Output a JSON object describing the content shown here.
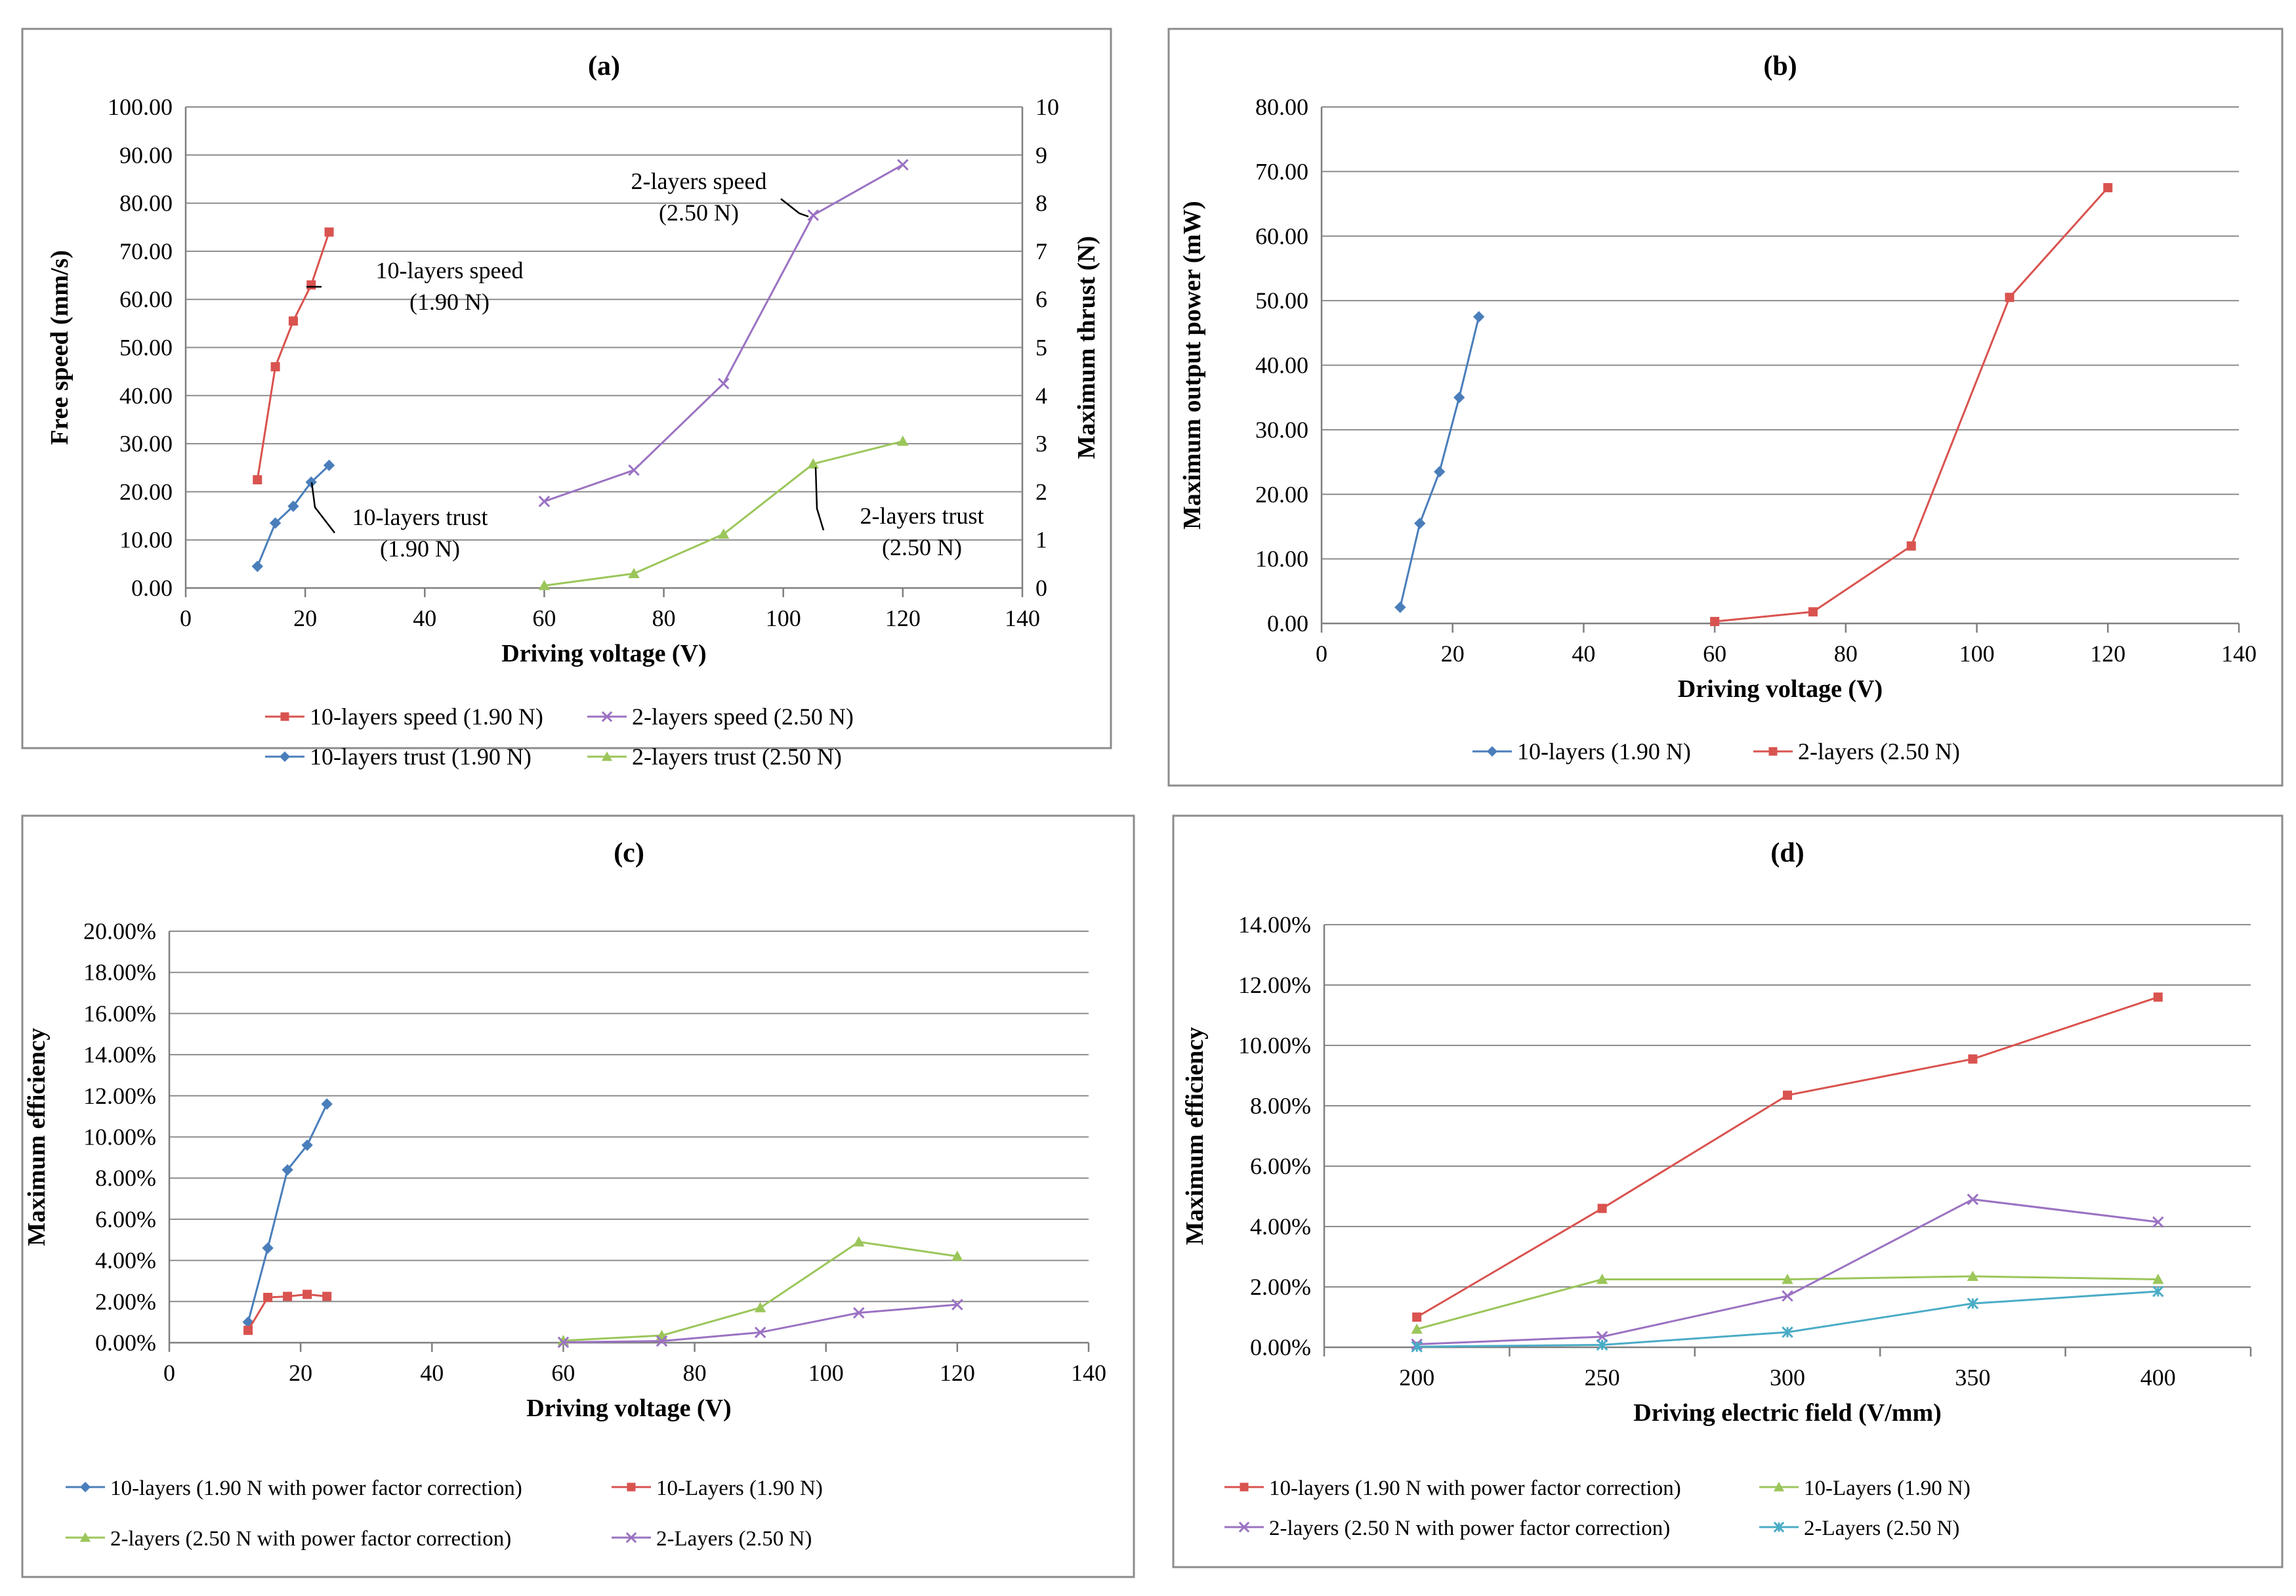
{
  "chart_data": [
    {
      "id": "a",
      "type": "line",
      "title": "(a)",
      "xlabel": "Driving voltage (V)",
      "ylabel": "Free speed (mm/s)",
      "y2label": "Maximum thrust (N)",
      "xlim": [
        0,
        140
      ],
      "ylim": [
        0,
        100
      ],
      "y2lim": [
        0,
        10
      ],
      "xticks": [
        "0",
        "20",
        "40",
        "60",
        "80",
        "100",
        "120",
        "140"
      ],
      "yticks": [
        "0.00",
        "10.00",
        "20.00",
        "30.00",
        "40.00",
        "50.00",
        "60.00",
        "70.00",
        "80.00",
        "90.00",
        "100.00"
      ],
      "y2ticks": [
        "0",
        "1",
        "2",
        "3",
        "4",
        "5",
        "6",
        "7",
        "8",
        "9",
        "10"
      ],
      "grid": true,
      "legend_position": "bottom",
      "series": [
        {
          "name": "10-layers speed (1.90 N)",
          "axis": "left",
          "color": "#d9534f",
          "marker": "square",
          "x": [
            12,
            15,
            18,
            21,
            24
          ],
          "y": [
            22.5,
            46.0,
            55.5,
            63.0,
            74.0
          ]
        },
        {
          "name": "2-layers speed (2.50 N)",
          "axis": "left",
          "color": "#9b72c2",
          "marker": "x",
          "x": [
            60,
            75,
            90,
            105,
            120
          ],
          "y": [
            18.0,
            24.5,
            42.5,
            77.5,
            88.0
          ]
        },
        {
          "name": "10-layers trust (1.90 N)",
          "axis": "right",
          "color": "#4a7ebb",
          "marker": "diamond",
          "x": [
            12,
            15,
            18,
            21,
            24
          ],
          "y": [
            0.45,
            1.35,
            1.7,
            2.2,
            2.55
          ]
        },
        {
          "name": "2-layers trust (2.50 N)",
          "axis": "right",
          "color": "#9bc65a",
          "marker": "triangle",
          "x": [
            60,
            75,
            90,
            105,
            120
          ],
          "y": [
            0.05,
            0.3,
            1.12,
            2.58,
            3.05
          ]
        }
      ],
      "annotations": [
        {
          "line1": "10-layers speed",
          "line2": "(1.90 N)"
        },
        {
          "line1": "2-layers speed",
          "line2": "(2.50 N)"
        },
        {
          "line1": "10-layers trust",
          "line2": "(1.90 N)"
        },
        {
          "line1": "2-layers trust",
          "line2": "(2.50 N)"
        }
      ]
    },
    {
      "id": "b",
      "type": "line",
      "title": "(b)",
      "xlabel": "Driving voltage (V)",
      "ylabel": "Maximum output power (mW)",
      "xlim": [
        0,
        140
      ],
      "ylim": [
        0,
        80
      ],
      "xticks": [
        "0",
        "20",
        "40",
        "60",
        "80",
        "100",
        "120",
        "140"
      ],
      "yticks": [
        "0.00",
        "10.00",
        "20.00",
        "30.00",
        "40.00",
        "50.00",
        "60.00",
        "70.00",
        "80.00"
      ],
      "grid": true,
      "legend_position": "bottom",
      "series": [
        {
          "name": "10-layers (1.90 N)",
          "color": "#4a7ebb",
          "marker": "diamond",
          "x": [
            12,
            15,
            18,
            21,
            24
          ],
          "y": [
            2.5,
            15.5,
            23.5,
            35.0,
            47.5
          ]
        },
        {
          "name": "2-layers (2.50 N)",
          "color": "#d9534f",
          "marker": "square",
          "x": [
            60,
            75,
            90,
            105,
            120
          ],
          "y": [
            0.3,
            1.8,
            12.0,
            50.5,
            67.5
          ]
        }
      ]
    },
    {
      "id": "c",
      "type": "line",
      "title": "(c)",
      "xlabel": "Driving voltage (V)",
      "ylabel": "Maximum efficiency",
      "xlim": [
        0,
        140
      ],
      "ylim": [
        0,
        20
      ],
      "xticks": [
        "0",
        "20",
        "40",
        "60",
        "80",
        "100",
        "120",
        "140"
      ],
      "yticks": [
        "0.00%",
        "2.00%",
        "4.00%",
        "6.00%",
        "8.00%",
        "10.00%",
        "12.00%",
        "14.00%",
        "16.00%",
        "18.00%",
        "20.00%"
      ],
      "grid": true,
      "legend_position": "bottom",
      "series": [
        {
          "name": "10-layers (1.90 N with power factor correction)",
          "color": "#4a7ebb",
          "marker": "diamond",
          "x": [
            12,
            15,
            18,
            21,
            24
          ],
          "y": [
            1.0,
            4.6,
            8.4,
            9.6,
            11.6
          ]
        },
        {
          "name": "10-Layers (1.90 N)",
          "color": "#d9534f",
          "marker": "square",
          "x": [
            12,
            15,
            18,
            21,
            24
          ],
          "y": [
            0.6,
            2.2,
            2.25,
            2.35,
            2.25
          ]
        },
        {
          "name": "2-layers (2.50 N with power factor correction)",
          "color": "#9bc65a",
          "marker": "triangle",
          "x": [
            60,
            75,
            90,
            105,
            120
          ],
          "y": [
            0.1,
            0.35,
            1.7,
            4.9,
            4.2
          ]
        },
        {
          "name": "2-Layers (2.50 N)",
          "color": "#9b72c2",
          "marker": "x",
          "x": [
            60,
            75,
            90,
            105,
            120
          ],
          "y": [
            0.02,
            0.08,
            0.5,
            1.45,
            1.85
          ]
        }
      ]
    },
    {
      "id": "d",
      "type": "line",
      "title": "(d)",
      "xlabel": "Driving electric field (V/mm)",
      "ylabel": "Maximum efficiency",
      "categories": [
        "200",
        "250",
        "300",
        "350",
        "400"
      ],
      "ylim": [
        0,
        14
      ],
      "yticks": [
        "0.00%",
        "2.00%",
        "4.00%",
        "6.00%",
        "8.00%",
        "10.00%",
        "12.00%",
        "14.00%"
      ],
      "grid": true,
      "legend_position": "bottom",
      "series": [
        {
          "name": "10-layers (1.90 N with power factor correction)",
          "color": "#d9534f",
          "marker": "square",
          "values": [
            1.0,
            4.6,
            8.35,
            9.55,
            11.6
          ]
        },
        {
          "name": "10-Layers (1.90 N)",
          "color": "#9bc65a",
          "marker": "triangle",
          "values": [
            0.6,
            2.25,
            2.25,
            2.35,
            2.25
          ]
        },
        {
          "name": "2-layers (2.50 N with power factor correction)",
          "color": "#9b72c2",
          "marker": "x",
          "values": [
            0.1,
            0.35,
            1.7,
            4.9,
            4.15
          ]
        },
        {
          "name": "2-Layers (2.50 N)",
          "color": "#4bacc6",
          "marker": "asterisk",
          "values": [
            0.02,
            0.08,
            0.5,
            1.45,
            1.85
          ]
        }
      ]
    }
  ]
}
